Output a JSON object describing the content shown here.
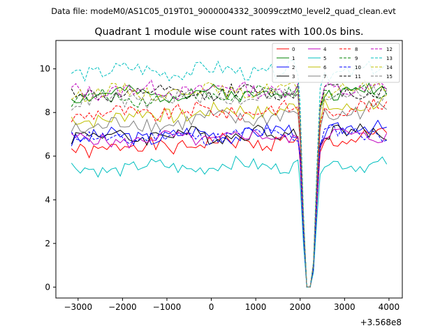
{
  "header": {
    "file_label": "Data file: modeM0/AS1C05_019T01_9000004332_30099cztM0_level2_quad_clean.evt"
  },
  "chart_data": {
    "type": "line",
    "title": "Quadrant 1 module wise count rates with 100.0s bins.",
    "xlabel": "",
    "ylabel": "",
    "x_offset_label": "+3.568e8",
    "xlim": [
      -3500,
      4300
    ],
    "ylim": [
      -0.5,
      11.3
    ],
    "x_ticks": [
      -3000,
      -2000,
      -1000,
      0,
      1000,
      2000,
      3000,
      4000
    ],
    "y_ticks": [
      0,
      2,
      4,
      6,
      8,
      10
    ],
    "legend_position": "top-right",
    "x": [
      -3150,
      -3050,
      -2950,
      -2850,
      -2750,
      -2650,
      -2550,
      -2450,
      -2350,
      -2250,
      -2150,
      -2050,
      -1950,
      -1850,
      -1750,
      -1650,
      -1550,
      -1450,
      -1350,
      -1250,
      -1150,
      -1050,
      -950,
      -850,
      -750,
      -650,
      -550,
      -450,
      -350,
      -250,
      -150,
      -50,
      50,
      150,
      250,
      350,
      450,
      550,
      650,
      750,
      850,
      950,
      1050,
      1150,
      1250,
      1350,
      1450,
      1550,
      1650,
      1750,
      1850,
      1950,
      2050,
      2150,
      2250,
      2350,
      2450,
      2550,
      2650,
      2750,
      2850,
      2950,
      3050,
      3150,
      3250,
      3350,
      3450,
      3550,
      3650,
      3750,
      3850,
      3950
    ],
    "dip": {
      "x": [
        2000,
        2075,
        2150,
        2225,
        2300,
        2375,
        2450
      ],
      "factors": [
        0.85,
        0.35,
        0.0,
        0.0,
        0.12,
        0.55,
        0.92
      ]
    },
    "series": [
      {
        "name": "0",
        "color": "#ff0000",
        "dash": "solid",
        "base": 6.3,
        "amp": 0.35,
        "trend": 0.6,
        "seed": 1
      },
      {
        "name": "1",
        "color": "#008000",
        "dash": "solid",
        "base": 8.8,
        "amp": 0.3,
        "trend": 0.2,
        "seed": 2
      },
      {
        "name": "2",
        "color": "#0000ff",
        "dash": "solid",
        "base": 6.8,
        "amp": 0.35,
        "trend": 0.5,
        "seed": 3
      },
      {
        "name": "3",
        "color": "#000000",
        "dash": "solid",
        "base": 6.9,
        "amp": 0.35,
        "trend": 0.2,
        "seed": 4
      },
      {
        "name": "4",
        "color": "#bf00bf",
        "dash": "solid",
        "base": 6.7,
        "amp": 0.3,
        "trend": 0.3,
        "seed": 5
      },
      {
        "name": "5",
        "color": "#00bfbf",
        "dash": "solid",
        "base": 5.4,
        "amp": 0.3,
        "trend": 0.3,
        "seed": 6
      },
      {
        "name": "6",
        "color": "#bfbf00",
        "dash": "solid",
        "base": 7.7,
        "amp": 0.35,
        "trend": 0.7,
        "seed": 7
      },
      {
        "name": "7",
        "color": "#808080",
        "dash": "solid",
        "base": 7.3,
        "amp": 0.4,
        "trend": 0.8,
        "seed": 8
      },
      {
        "name": "8",
        "color": "#ff0000",
        "dash": "dashed",
        "base": 7.9,
        "amp": 0.35,
        "trend": 0.3,
        "seed": 9
      },
      {
        "name": "9",
        "color": "#008000",
        "dash": "dashed",
        "base": 8.6,
        "amp": 0.3,
        "trend": 0.4,
        "seed": 10
      },
      {
        "name": "10",
        "color": "#0000ff",
        "dash": "dashed",
        "base": 6.8,
        "amp": 0.3,
        "trend": 0.3,
        "seed": 11
      },
      {
        "name": "11",
        "color": "#000000",
        "dash": "dashed",
        "base": 8.8,
        "amp": 0.3,
        "trend": 0.2,
        "seed": 12
      },
      {
        "name": "12",
        "color": "#bf00bf",
        "dash": "dashed",
        "base": 9.0,
        "amp": 0.35,
        "trend": 0.1,
        "seed": 13
      },
      {
        "name": "13",
        "color": "#00bfbf",
        "dash": "dashed",
        "base": 9.9,
        "amp": 0.35,
        "trend": 0.0,
        "seed": 14
      },
      {
        "name": "14",
        "color": "#bfbf00",
        "dash": "dashed",
        "base": 8.9,
        "amp": 0.3,
        "trend": 0.2,
        "seed": 15
      },
      {
        "name": "15",
        "color": "#808080",
        "dash": "dashed",
        "base": 8.5,
        "amp": 0.35,
        "trend": 0.4,
        "seed": 16
      }
    ]
  }
}
